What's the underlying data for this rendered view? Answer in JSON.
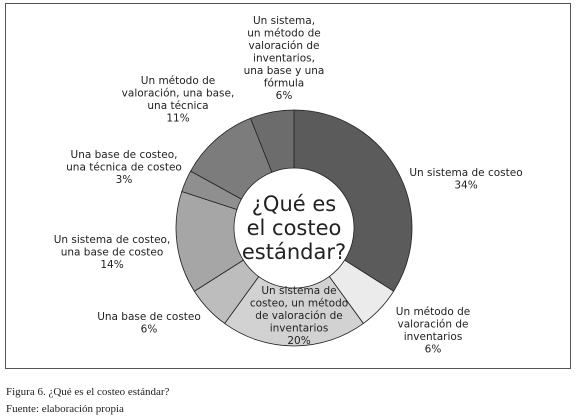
{
  "chart_data": {
    "type": "pie",
    "donut": true,
    "center_text": [
      "¿Qué es",
      "el costeo",
      "estándar?"
    ],
    "slices": [
      {
        "label": [
          "Un sistema de costeo"
        ],
        "percent_text": "34%",
        "value": 34,
        "color": "#5b5b5b"
      },
      {
        "label": [
          "Un método de",
          "valoración de",
          "inventarios"
        ],
        "percent_text": "6%",
        "value": 6,
        "color": "#ebebeb"
      },
      {
        "label": [
          "Un sistema de",
          "costeo, un método",
          "de valoración de",
          "inventarios"
        ],
        "percent_text": "20%",
        "value": 20,
        "color": "#d2d2d2"
      },
      {
        "label": [
          "Una base de costeo"
        ],
        "percent_text": "6%",
        "value": 6,
        "color": "#bdbdbd"
      },
      {
        "label": [
          "Un sistema de costeo,",
          "una base de costeo"
        ],
        "percent_text": "14%",
        "value": 14,
        "color": "#a6a6a6"
      },
      {
        "label": [
          "Una base de costeo,",
          "una técnica de costeo"
        ],
        "percent_text": "3%",
        "value": 3,
        "color": "#8f8f8f"
      },
      {
        "label": [
          "Un método de",
          "valoración, una base,",
          "una técnica"
        ],
        "percent_text": "11%",
        "value": 11,
        "color": "#7c7c7c"
      },
      {
        "label": [
          "Un sistema,",
          "un método de",
          "valoración de",
          "inventarios,",
          "una base y una",
          "fórmula"
        ],
        "percent_text": "6%",
        "value": 6,
        "color": "#6c6c6c"
      }
    ]
  },
  "caption": {
    "figure": "Figura 6. ¿Qué es el costeo estándar?",
    "source": "Fuente: elaboración propia"
  }
}
